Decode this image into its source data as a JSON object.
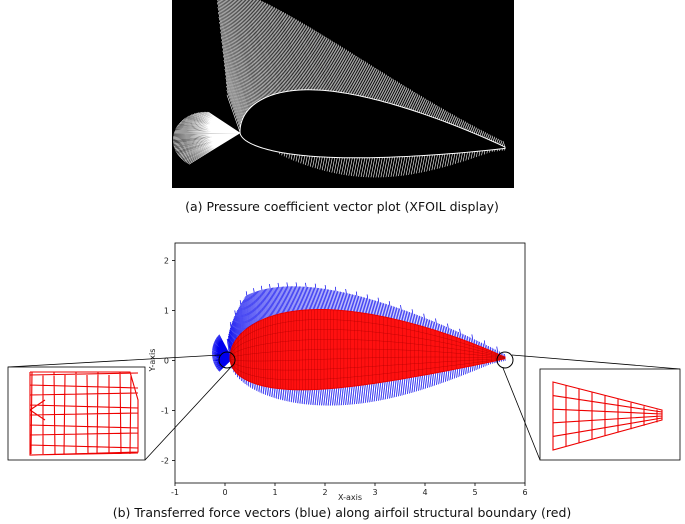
{
  "figure_a": {
    "caption": "(a) Pressure coefficient vector plot (XFOIL display)"
  },
  "chart_data": {
    "type": "line",
    "xlabel": "X-axis",
    "ylabel": "Y-axis",
    "xlim": [
      -1,
      6
    ],
    "ylim": [
      -2.45,
      2.35
    ],
    "xticks": [
      -1,
      0,
      1,
      2,
      3,
      4,
      5,
      6
    ],
    "yticks": [
      -2,
      -1,
      0,
      1,
      2
    ]
  },
  "figure_b": {
    "caption": "(b) Transferred force vectors (blue) along airfoil structural boundary (red)"
  }
}
